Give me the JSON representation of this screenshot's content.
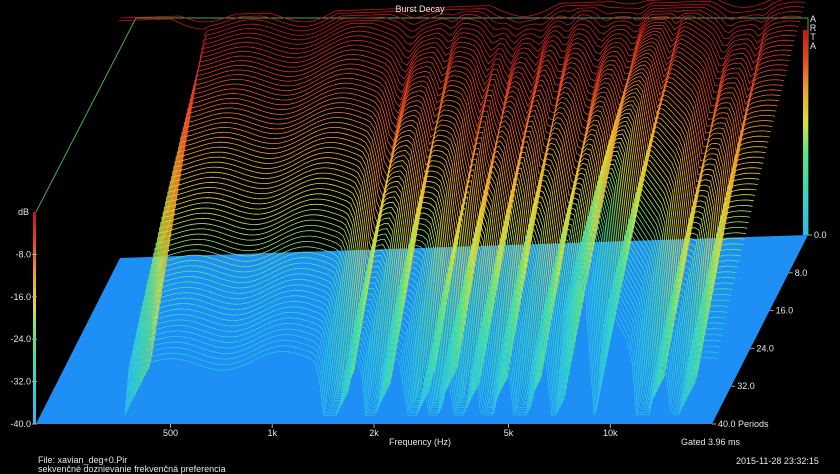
{
  "chart_data": {
    "type": "waterfall-3d",
    "title": "Burst Decay",
    "brand": [
      "A",
      "R",
      "T",
      "A"
    ],
    "xlabel": "Frequency (Hz)",
    "x_ticks": [
      "500",
      "1k",
      "2k",
      "5k",
      "10k"
    ],
    "x_scale": "log",
    "xlim": [
      200,
      20000
    ],
    "ylabel": "dB",
    "y_ticks": [
      "-8.0",
      "-16.0",
      "-24.0",
      "-32.0",
      "-40.0"
    ],
    "ylim": [
      -40,
      0
    ],
    "z_ticks": [
      "0.0",
      "8.0",
      "16.0",
      "24.0",
      "32.0",
      "40.0 Periods"
    ],
    "zlim": [
      0,
      40
    ],
    "gated": "Gated 3.96 ms",
    "colorscale": [
      "#2fb8f0",
      "#36d6c8",
      "#5ee28a",
      "#d8e23a",
      "#f2a42a",
      "#e84a22",
      "#c8141a"
    ]
  },
  "footer": {
    "file": "File: xavian_deg+0.Pir",
    "description": "sekvenčné doznievanie frekvenčná preferencia",
    "timestamp": "2015-11-28  23:32:15"
  }
}
